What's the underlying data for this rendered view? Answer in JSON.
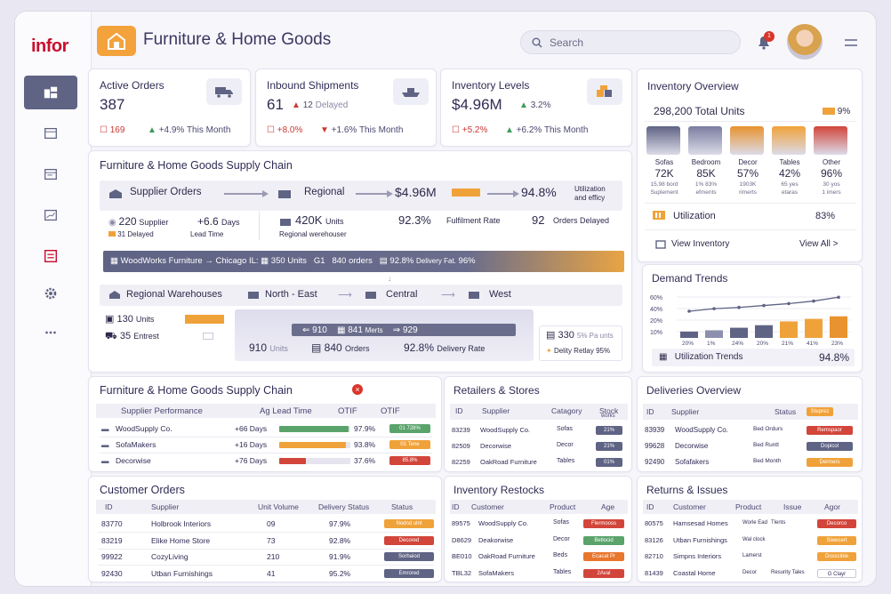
{
  "app": {
    "logo": "infor",
    "title": "Furniture & Home Goods",
    "search_placeholder": "Search",
    "notification_count": "1"
  },
  "kpis": [
    {
      "label": "Active Orders",
      "value": "387",
      "left": "169",
      "delta": "+4.9%",
      "period": "This Month"
    },
    {
      "label": "Inbound Shipments",
      "value": "61",
      "arrow_val": "12",
      "arrow_lbl": "Delayed",
      "left": "+8.0%",
      "delta": "+1.6%",
      "period": "This Month"
    },
    {
      "label": "Inventory Levels",
      "value": "$4.96M",
      "arrow_val": "3.2%",
      "left": "+5.2%",
      "delta": "+6.2%",
      "period": "This Month"
    }
  ],
  "overview": {
    "title": "Inventory Overview",
    "total": "298,200",
    "total_lbl": "Total Units",
    "pct": "9%",
    "categories": [
      {
        "name": "Sofas",
        "value": "72K",
        "s1": "15,98 bord",
        "s2": "Suplement"
      },
      {
        "name": "Bedroom",
        "value": "85K",
        "s1": "1% 83%",
        "s2": "efments"
      },
      {
        "name": "Decor",
        "value": "57%",
        "s1": "1903K",
        "s2": "rimerts"
      },
      {
        "name": "Tables",
        "value": "42%",
        "s1": "65 yes",
        "s2": "etaras"
      },
      {
        "name": "Other",
        "value": "96%",
        "s1": "30 yos",
        "s2": "1 imers"
      }
    ],
    "utilization_lbl": "Utilization",
    "utilization": "83%",
    "view_inventory": "View Inventory",
    "view_all": "View All >"
  },
  "supply": {
    "title": "Furniture & Home Goods Supply Chain",
    "supplier_orders": "Supplier Orders",
    "regional": "Regional",
    "amount": "$4.96M",
    "pct": "94.8%",
    "util_note_1": "Utilization",
    "util_note_2": "and efficy",
    "sup_val": "220",
    "sup_lbl": "Supplier",
    "sup_days": "+6.6",
    "sup_days_lbl": "Days",
    "delayed": "31 Delayed",
    "lead": "Lead Time",
    "reg_val": "420K",
    "reg_units": "Units",
    "reg_wh": "Regional werehouser",
    "ful_pct": "92.3%",
    "ful_lbl": "Fulfilment Rate",
    "od_val": "92",
    "od_lbl": "Orders Delayed",
    "strip": {
      "from": "WoodWorks Furniture",
      "arrow": "→",
      "to": "Chicago IL:",
      "units": "350 Units",
      "g": "G1",
      "orders": "840 orders",
      "dr": "92.8%",
      "dr_lbl": "Delivery Fat.",
      "final": "96%"
    },
    "wh_title": "Regional Warehouses",
    "ne": "North - East",
    "central": "Central",
    "west": "West",
    "wh_units": "130",
    "wh_units_lbl": "Units",
    "wh_ent": "35",
    "wh_ent_lbl": "Entrest",
    "m1": "910",
    "m2": "841",
    "m2_lbl": "Merts",
    "m3": "929",
    "total_units": "910",
    "total_units_lbl": "Units",
    "total_orders": "840",
    "total_orders_lbl": "Orders",
    "dr2": "92.8%",
    "dr2_lbl": "Delivery Rate",
    "s330": "330",
    "s330_lbl": "5% Pa unts",
    "dty": "Delity Retlay 95%"
  },
  "demand": {
    "title": "Demand Trends",
    "footer_lbl": "Utilization Trends",
    "footer_val": "94.8%",
    "y_ticks": [
      "60%",
      "40%",
      "20%",
      "10%"
    ],
    "x_labels": [
      "20%",
      "1%",
      "24%",
      "20%",
      "21%",
      "41%",
      "23%"
    ],
    "bars": [
      10,
      12,
      16,
      20,
      26,
      30,
      34
    ],
    "line": [
      42,
      46,
      48,
      51,
      54,
      58,
      64
    ]
  },
  "perf": {
    "title": "Furniture & Home Goods Supply Chain",
    "cols": [
      "Supplier Performance",
      "Ag Lead Time",
      "OTIF",
      "OTIF"
    ],
    "rows": [
      {
        "name": "WoodSupply Co.",
        "days": "+66 Days",
        "otif": "97.9%",
        "tag": "01 728%",
        "fill": 0.98,
        "color": "#5aa36b"
      },
      {
        "name": "SofaMakers",
        "days": "+16 Days",
        "otif": "93.8%",
        "tag": "01 Tene",
        "fill": 0.94,
        "color": "#f0a23a"
      },
      {
        "name": "Decorwise",
        "days": "+76 Days",
        "otif": "37.6%",
        "tag": "85.8%",
        "fill": 0.38,
        "color": "#d2453a"
      }
    ]
  },
  "retailers": {
    "title": "Retailers & Stores",
    "cols": [
      "ID",
      "Supplier",
      "Catagory",
      "Stock"
    ],
    "stock_sub": "works",
    "rows": [
      {
        "id": "83239",
        "name": "WoodSupply Co.",
        "cat": "Sofas",
        "tag": "21%"
      },
      {
        "id": "82509",
        "name": "Decorwise",
        "cat": "Decor",
        "tag": "21%"
      },
      {
        "id": "82259",
        "name": "OakRoad Furniture",
        "cat": "Tables",
        "tag": "01%"
      }
    ]
  },
  "deliveries": {
    "title": "Deliveries Overview",
    "cols": [
      "ID",
      "Supplier",
      "Status"
    ],
    "rows": [
      {
        "id": "83939",
        "name": "WoodSupply Co.",
        "status": "Bed Ordurs",
        "tag": "Remspaor",
        "color": "#d2453a"
      },
      {
        "id": "99628",
        "name": "Decorwise",
        "status": "Bed Runtt",
        "tag": "Dopicol",
        "color": "#5f6384"
      },
      {
        "id": "92490",
        "name": "Sofafakers",
        "status": "Bed Month",
        "tag": "Dermers",
        "color": "#f0a23a"
      }
    ],
    "head_tag": "Steprez"
  },
  "customer_orders": {
    "title": "Customer Orders",
    "cols": [
      "ID",
      "Supplier",
      "Unit Volume",
      "Delivery Status",
      "Status"
    ],
    "rows": [
      {
        "id": "83770",
        "name": "Holbrook Interiors",
        "vol": "09",
        "ds": "97.9%",
        "tag": "Nodnd uint",
        "color": "#f0a23a"
      },
      {
        "id": "83219",
        "name": "Elike Home Store",
        "vol": "73",
        "ds": "92.8%",
        "tag": "Decored",
        "color": "#d2453a"
      },
      {
        "id": "99922",
        "name": "CozyLiving",
        "vol": "210",
        "ds": "91.9%",
        "tag": "Sorhaiod",
        "color": "#5f6384"
      },
      {
        "id": "92430",
        "name": "Utban Furnishings",
        "vol": "41",
        "ds": "95.2%",
        "tag": "Emrored",
        "color": "#5f6384"
      }
    ]
  },
  "restocks": {
    "title": "Inventory Restocks",
    "cols": [
      "ID",
      "Customer",
      "Product",
      "Age"
    ],
    "rows": [
      {
        "id": "89575",
        "name": "WoodSupply Co.",
        "prod": "Sofas",
        "tag": "Flermooss",
        "color": "#d2453a"
      },
      {
        "id": "D8629",
        "name": "Deakorwise",
        "prod": "Decor",
        "tag": "Betlocid",
        "color": "#5aa36b"
      },
      {
        "id": "BE010",
        "name": "OakRoad Furniture",
        "prod": "Beds",
        "tag": "Ecacat Pr",
        "color": "#e8762d"
      },
      {
        "id": "TBL32",
        "name": "SofaMakers",
        "prod": "Tables",
        "tag": "2Aval",
        "color": "#d2453a"
      }
    ]
  },
  "returns": {
    "title": "Returns & Issues",
    "cols": [
      "ID",
      "Customer",
      "Product",
      "Issue",
      "Agor"
    ],
    "rows": [
      {
        "id": "80575",
        "name": "Hamsesad Homes",
        "prod": "Worle Ead",
        "issue": "Tlents",
        "tag": "Decorco",
        "color": "#d2453a"
      },
      {
        "id": "83126",
        "name": "Utban Furnishings",
        "prod": "Wal clock",
        "issue": "",
        "tag": "Siwecert",
        "color": "#f0a23a"
      },
      {
        "id": "82710",
        "name": "Simpns Interiors",
        "prod": "Lamerst",
        "issue": "",
        "tag": "Dosscible",
        "color": "#f0a23a"
      },
      {
        "id": "81439",
        "name": "Coastal Home",
        "prod": "Decor",
        "issue": "Resurity Tales",
        "tag": "G Clayr",
        "color": "#fff"
      }
    ]
  }
}
